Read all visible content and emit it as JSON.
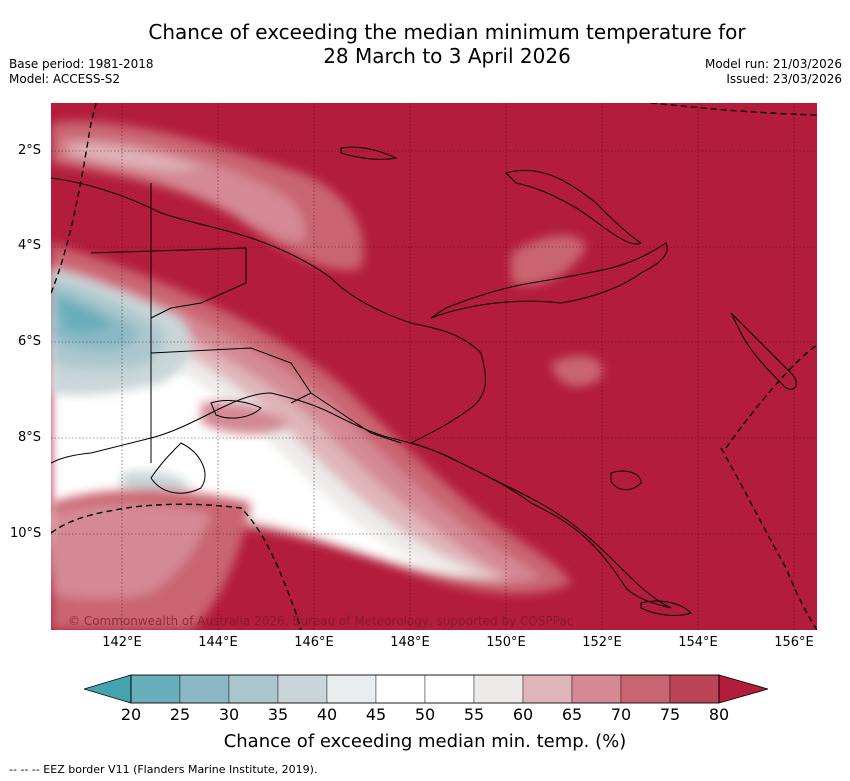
{
  "title": {
    "line1": "Chance of exceeding the median minimum temperature for",
    "line2": "28 March to 3 April 2026"
  },
  "meta_left": {
    "base_period": "Base period: 1981-2018",
    "model": "Model: ACCESS-S2"
  },
  "meta_right": {
    "model_run": "Model run: 21/03/2026",
    "issued": "Issued: 23/03/2026"
  },
  "lat_ticks": [
    "2°S",
    "4°S",
    "6°S",
    "8°S",
    "10°S"
  ],
  "lon_ticks": [
    "142°E",
    "144°E",
    "146°E",
    "148°E",
    "150°E",
    "152°E",
    "154°E",
    "156°E"
  ],
  "copyright": "© Commonwealth of Australia 2026, Bureau of Meteorology, supported by COSPPac",
  "colorbar": {
    "ticks": [
      "20",
      "25",
      "30",
      "35",
      "40",
      "45",
      "50",
      "55",
      "60",
      "65",
      "70",
      "75",
      "80"
    ],
    "colors": [
      "#68aebb",
      "#8ab9c5",
      "#abc7cd",
      "#c9d5d8",
      "#e8eeef",
      "#ffffff",
      "#ffffff",
      "#ecebe9",
      "#e0b5ba",
      "#d48994",
      "#c96570",
      "#bb4456"
    ],
    "low_extend_color": "#45a3b0",
    "high_extend_color": "#b31c3b",
    "label": "Chance of exceeding median min. temp. (%)"
  },
  "footer": "--  --  -- EEZ border V11 (Flanders Marine Institute, 2019).",
  "map_colors": {
    "background": "#b31c3b",
    "land_outline": "#000000"
  }
}
